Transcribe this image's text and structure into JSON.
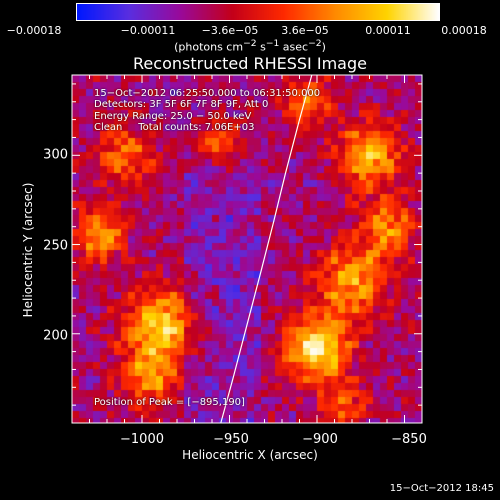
{
  "colorbar": {
    "ticks": [
      "−0.00018",
      "−0.00011",
      "−3.6e−05",
      "3.6e−05",
      "0.00011",
      "0.00018"
    ],
    "unit_html": "(photons cm<sup>−2</sup> s<sup>−1</sup> asec<sup>−2</sup>)",
    "range": [
      -0.00018,
      0.00018
    ],
    "colors": [
      "#0018ff",
      "#5a2ee0",
      "#9a0a9a",
      "#c4001a",
      "#ff2a00",
      "#ff8a00",
      "#ffd400",
      "#ffffff"
    ]
  },
  "chart_data": {
    "type": "heatmap",
    "title": "Reconstructed RHESSI Image",
    "xlabel": "Heliocentric X (arcsec)",
    "ylabel": "Heliocentric Y (arcsec)",
    "xlim": [
      -1040,
      -840
    ],
    "ylim": [
      150,
      345
    ],
    "x_ticks": [
      -1000,
      -950,
      -900,
      -850
    ],
    "x_tick_labels": [
      "−1000",
      "−950",
      "−900",
      "−850"
    ],
    "y_ticks": [
      200,
      250,
      300
    ],
    "y_tick_labels": [
      "200",
      "250",
      "300"
    ],
    "limb_curve": [
      [
        -955,
        150
      ],
      [
        -948,
        175
      ],
      [
        -940,
        205
      ],
      [
        -932,
        235
      ],
      [
        -925,
        262
      ],
      [
        -918,
        290
      ],
      [
        -910,
        320
      ],
      [
        -903,
        345
      ]
    ],
    "peak": [
      -895,
      190
    ]
  },
  "overlay": {
    "line1": "15−Oct−2012 06:25:50.000 to 06:31:50.000",
    "line2": "Detectors: 3F 5F 6F 7F 8F 9F, Att 0",
    "line3": "Energy Range: 25.0 − 50.0 keV",
    "line4": "Clean     Total counts: 7.06E+03",
    "peak_text": "Position of Peak = [−895,190]"
  },
  "footer": "15−Oct−2012 18:45"
}
